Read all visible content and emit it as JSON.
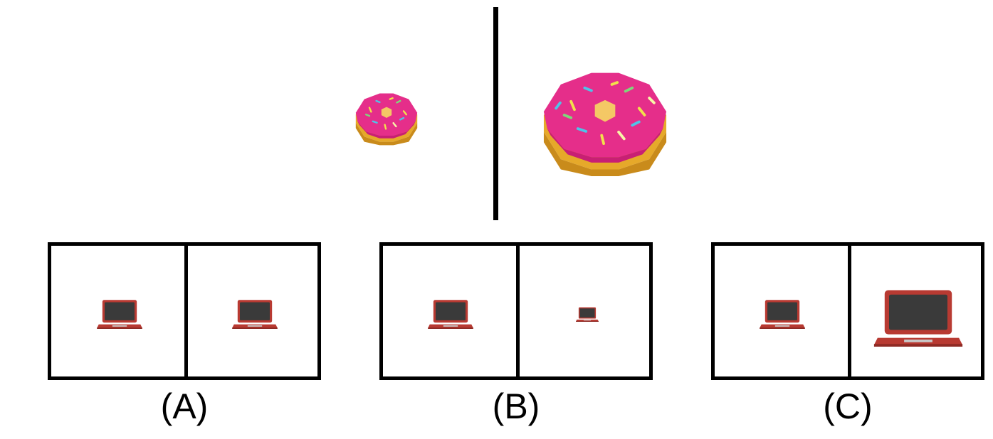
{
  "donut_colors": {
    "frosting": "#e52e8a",
    "frosting_shade": "#c81f74",
    "dough": "#e6a92a",
    "dough_shade": "#c98b1b",
    "hole": "#f4c865",
    "sprinkles": [
      "#f2e04b",
      "#4fc3e8",
      "#7fd77a",
      "#f7f7a8"
    ]
  },
  "laptop_colors": {
    "body": "#b83a32",
    "body_shade": "#8e2a24",
    "screen": "#3a3a3a",
    "keyboard": "#c9c9c9"
  },
  "options": [
    {
      "label": "(A)"
    },
    {
      "label": "(B)"
    },
    {
      "label": "(C)"
    }
  ]
}
